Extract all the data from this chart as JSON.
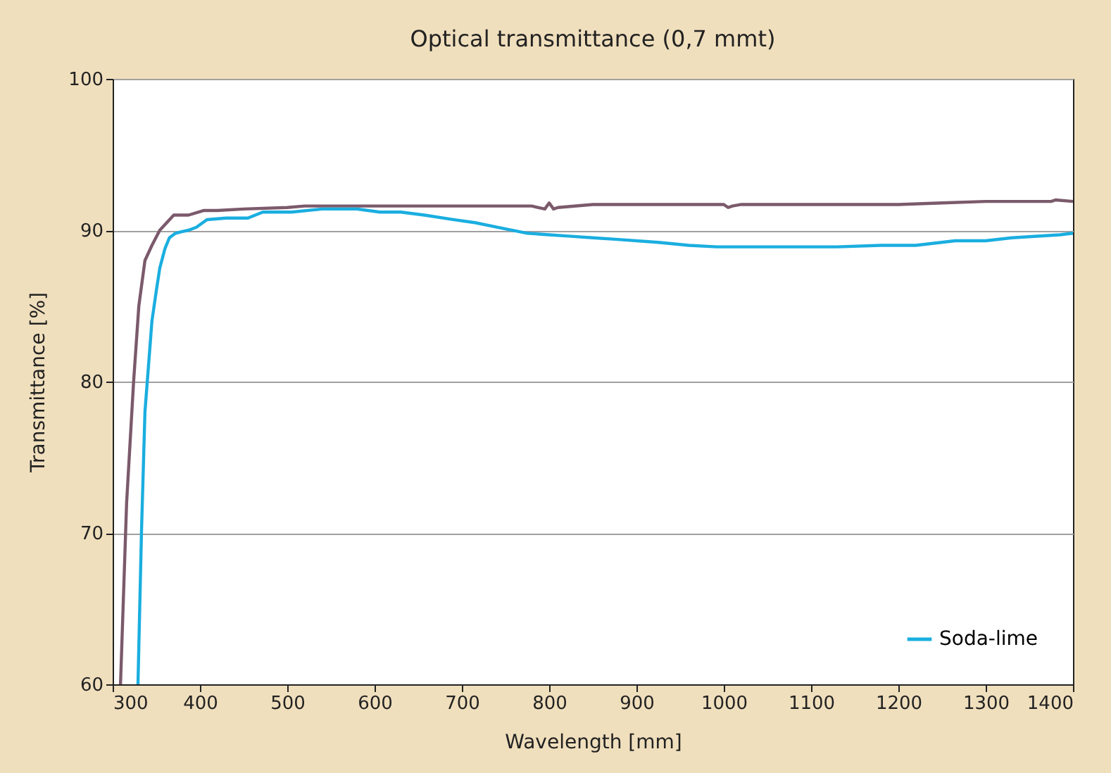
{
  "chart_data": {
    "type": "line",
    "title": "Optical transmittance (0,7 mmt)",
    "xlabel": "Wavelength [mm]",
    "ylabel": "Transmittance [%]",
    "xlim": [
      300,
      1400
    ],
    "xticks": [
      300,
      400,
      500,
      600,
      700,
      800,
      900,
      1000,
      1100,
      1200,
      1300,
      1400
    ],
    "ylim": [
      60,
      100
    ],
    "yticks": [
      60,
      70,
      80,
      90,
      100
    ],
    "grid": "y",
    "legend": "bottom right",
    "line_style": "solid",
    "marker": "none",
    "series": [
      {
        "color": "#7b5a6b",
        "x": [
          309,
          316,
          324,
          330,
          337,
          345,
          354,
          362,
          370,
          387,
          404,
          420,
          450,
          500,
          520,
          600,
          700,
          780,
          795,
          800,
          805,
          810,
          850,
          900,
          1000,
          1005,
          1010,
          1020,
          1100,
          1200,
          1250,
          1300,
          1375,
          1380,
          1400
        ],
        "values": [
          60,
          72,
          80,
          85,
          88,
          89,
          90,
          90.5,
          91,
          91,
          91.3,
          91.3,
          91.4,
          91.5,
          91.6,
          91.6,
          91.6,
          91.6,
          91.4,
          91.8,
          91.4,
          91.5,
          91.7,
          91.7,
          91.7,
          91.5,
          91.6,
          91.7,
          91.7,
          91.7,
          91.8,
          91.9,
          91.9,
          92.0,
          91.9
        ]
      },
      {
        "name": "Soda-lime",
        "color": "#1aaee0",
        "x": [
          329,
          333,
          337,
          341,
          345,
          350,
          354,
          360,
          365,
          372,
          379,
          387,
          396,
          408,
          430,
          455,
          472,
          505,
          540,
          580,
          606,
          630,
          657,
          690,
          715,
          740,
          775,
          800,
          825,
          850,
          876,
          925,
          960,
          993,
          1050,
          1130,
          1180,
          1220,
          1265,
          1300,
          1330,
          1385,
          1400
        ],
        "values": [
          60,
          70,
          78,
          81,
          84,
          86,
          87.5,
          88.8,
          89.5,
          89.8,
          89.9,
          90,
          90.2,
          90.7,
          90.8,
          90.8,
          91.2,
          91.2,
          91.4,
          91.4,
          91.2,
          91.2,
          91,
          90.7,
          90.5,
          90.2,
          89.8,
          89.7,
          89.6,
          89.5,
          89.4,
          89.2,
          89,
          88.9,
          88.9,
          88.9,
          89,
          89,
          89.3,
          89.3,
          89.5,
          89.7,
          89.8
        ]
      }
    ]
  }
}
